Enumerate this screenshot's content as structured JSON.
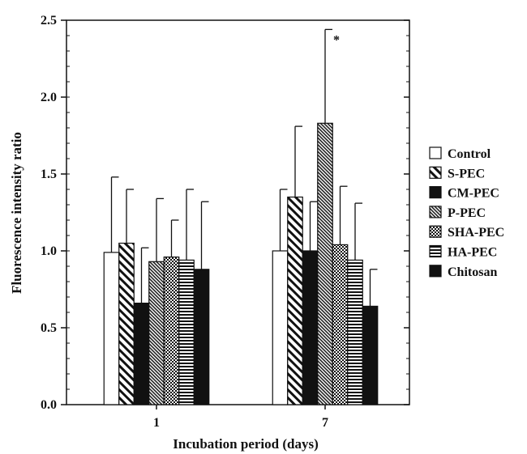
{
  "chart_data": {
    "type": "bar",
    "title": "",
    "xlabel": "Incubation period (days)",
    "ylabel": "Fluorescence intensity ratio",
    "categories": [
      "1",
      "7"
    ],
    "ylim": [
      0,
      2.5
    ],
    "yticks": [
      "0.0",
      "0.5",
      "1.0",
      "1.5",
      "2.0",
      "2.5"
    ],
    "grid": false,
    "legend_position": "right",
    "series": [
      {
        "name": "Control",
        "pattern": "open",
        "values": [
          0.99,
          1.0
        ],
        "errors": [
          0.49,
          0.4
        ]
      },
      {
        "name": "S-PEC",
        "pattern": "diagonal-wide",
        "values": [
          1.05,
          1.35
        ],
        "errors": [
          0.35,
          0.46
        ]
      },
      {
        "name": "CM-PEC",
        "pattern": "solid",
        "values": [
          0.66,
          1.0
        ],
        "errors": [
          0.36,
          0.32
        ]
      },
      {
        "name": "P-PEC",
        "pattern": "diagonal-dense",
        "values": [
          0.93,
          1.83
        ],
        "errors": [
          0.41,
          0.61
        ]
      },
      {
        "name": "SHA-PEC",
        "pattern": "checker",
        "values": [
          0.96,
          1.04
        ],
        "errors": [
          0.24,
          0.38
        ]
      },
      {
        "name": "HA-PEC",
        "pattern": "horizontal",
        "values": [
          0.94,
          0.94
        ],
        "errors": [
          0.46,
          0.37
        ]
      },
      {
        "name": "Chitosan",
        "pattern": "solid",
        "values": [
          0.88,
          0.64
        ],
        "errors": [
          0.44,
          0.24
        ]
      }
    ],
    "annotations": [
      {
        "text": "*",
        "category": "7",
        "series": "P-PEC"
      }
    ]
  }
}
